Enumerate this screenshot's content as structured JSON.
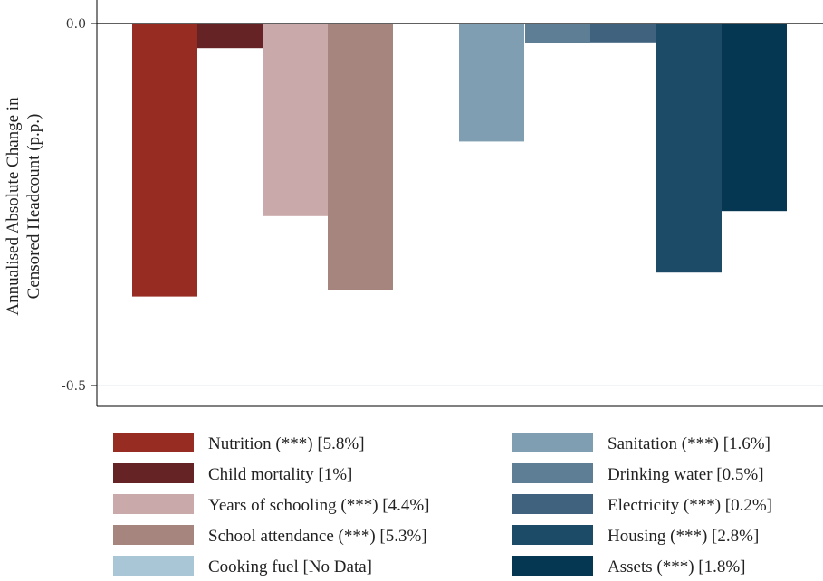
{
  "chart_data": {
    "type": "bar",
    "title": "",
    "ylabel": [
      "Annualised Absolute Change in",
      "Censored Headcount (p.p.)"
    ],
    "xlabel": "",
    "ylim": [
      -0.53,
      0.005
    ],
    "yticks": [
      0.0,
      -0.5
    ],
    "ytick_labels": [
      "0.0",
      "-0.5"
    ],
    "grid": true,
    "legend_position": "bottom",
    "series": [
      {
        "name": "Nutrition (***) [5.8%]",
        "value": -0.377,
        "color": "#962c22"
      },
      {
        "name": "Child mortality [1%]",
        "value": -0.034,
        "color": "#652326"
      },
      {
        "name": "Years of schooling (***) [4.4%]",
        "value": -0.266,
        "color": "#c9a9aa"
      },
      {
        "name": "School attendance (***) [5.3%]",
        "value": -0.368,
        "color": "#a5857e"
      },
      {
        "name": "Cooking fuel [No Data]",
        "value": null,
        "color": "#a9c6d6"
      },
      {
        "name": "Sanitation (***) [1.6%]",
        "value": -0.163,
        "color": "#7f9eb2"
      },
      {
        "name": "Drinking water [0.5%]",
        "value": -0.027,
        "color": "#5e7e96"
      },
      {
        "name": "Electricity (***) [0.2%]",
        "value": -0.026,
        "color": "#40627e"
      },
      {
        "name": "Housing (***) [2.8%]",
        "value": -0.344,
        "color": "#1c4b67"
      },
      {
        "name": "Assets (***) [1.8%]",
        "value": -0.259,
        "color": "#053753"
      }
    ]
  }
}
